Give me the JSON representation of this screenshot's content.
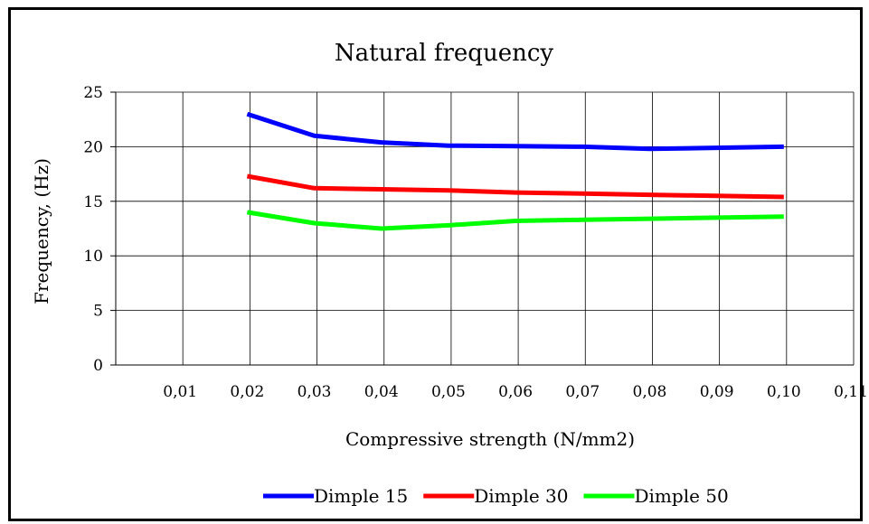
{
  "chart_data": {
    "type": "line",
    "title": "Natural frequency",
    "xlabel": "Compressive strength (N/mm2)",
    "ylabel": "Frequency,  (Hz)",
    "x_categories": [
      "0,01",
      "0,02",
      "0,03",
      "0,04",
      "0,05",
      "0,06",
      "0,07",
      "0,08",
      "0,09",
      "0,10",
      "0,11"
    ],
    "ylim": [
      0,
      25
    ],
    "yticks": [
      0,
      5,
      10,
      15,
      20,
      25
    ],
    "grid": true,
    "legend_position": "bottom",
    "series": [
      {
        "name": "Dimple 15",
        "color": "#0000ff",
        "x": [
          "0,02",
          "0,03",
          "0,04",
          "0,05",
          "0,06",
          "0,07",
          "0,08",
          "0,10"
        ],
        "values": [
          23.0,
          21.0,
          20.4,
          20.1,
          20.05,
          20.0,
          19.8,
          20.0
        ]
      },
      {
        "name": "Dimple 30",
        "color": "#ff0000",
        "x": [
          "0,02",
          "0,03",
          "0,04",
          "0,05",
          "0,06",
          "0,07",
          "0,08",
          "0,10"
        ],
        "values": [
          17.3,
          16.2,
          16.1,
          16.0,
          15.8,
          15.7,
          15.6,
          15.4
        ]
      },
      {
        "name": "Dimple 50",
        "color": "#00ff00",
        "x": [
          "0,02",
          "0,03",
          "0,04",
          "0,05",
          "0,06",
          "0,07",
          "0,08",
          "0,10"
        ],
        "values": [
          14.0,
          13.0,
          12.5,
          12.8,
          13.2,
          13.3,
          13.4,
          13.6
        ]
      }
    ]
  }
}
